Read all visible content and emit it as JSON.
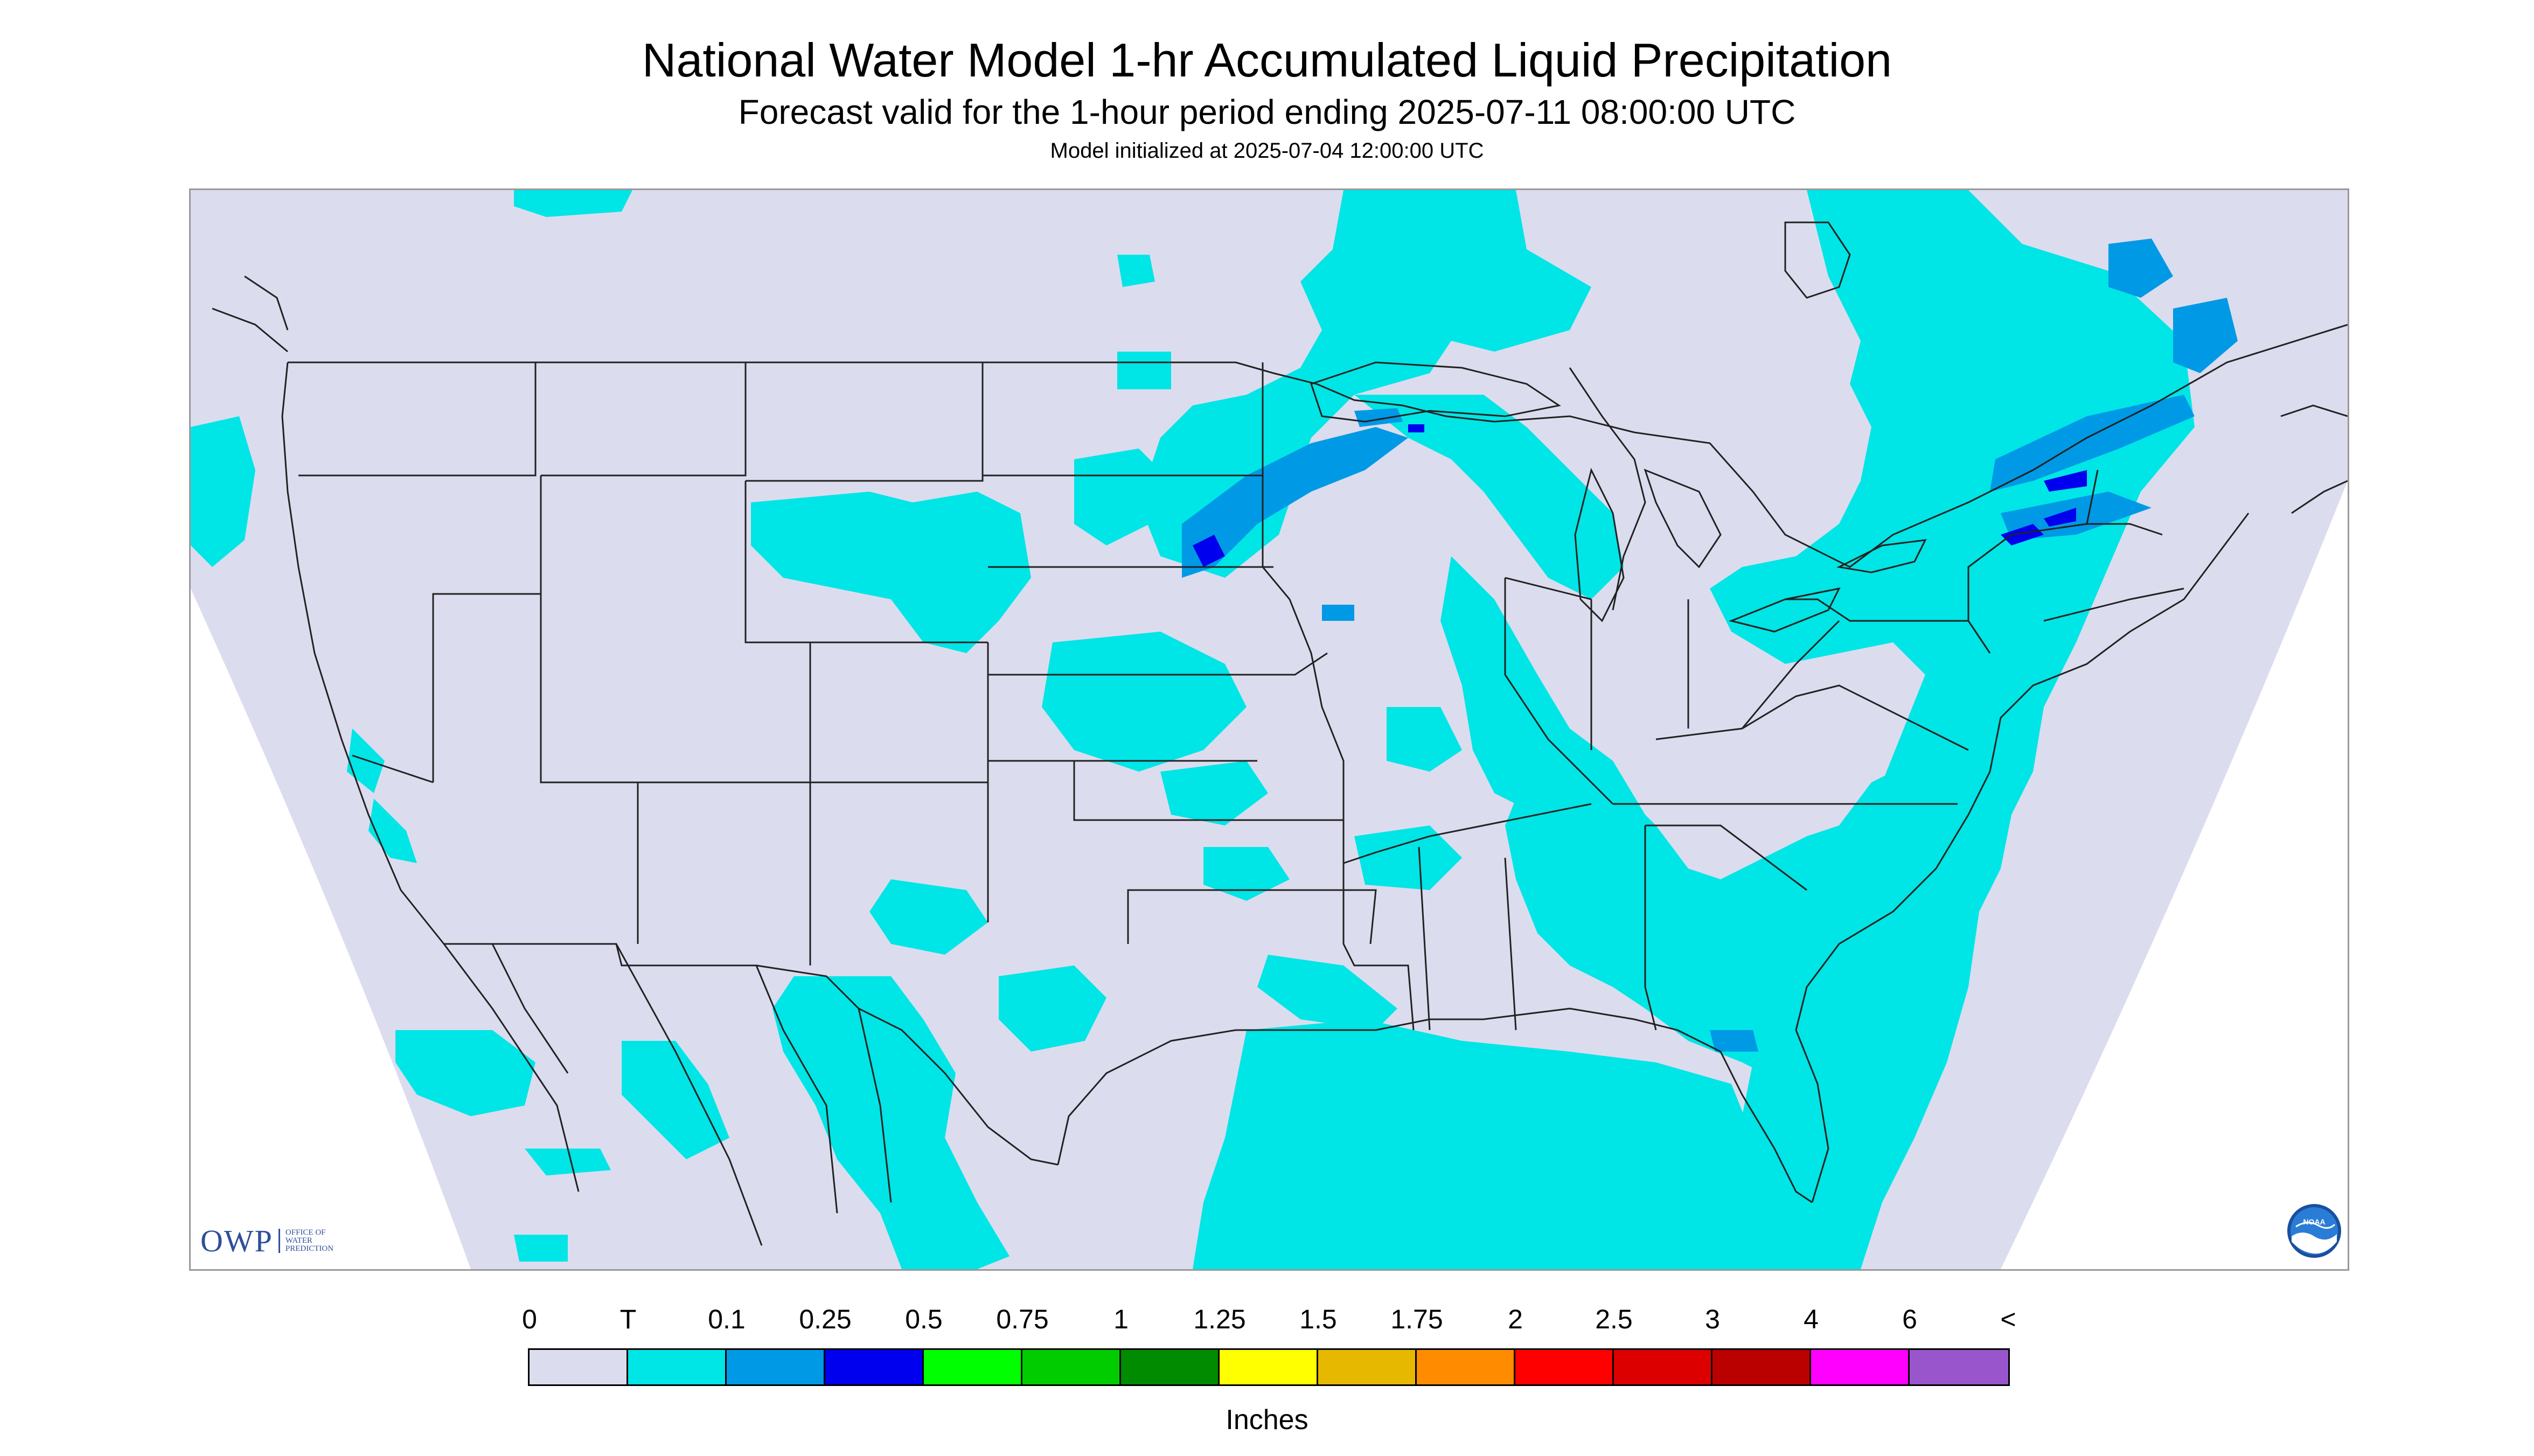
{
  "title": "National Water Model 1-hr Accumulated Liquid Precipitation",
  "subtitle": "Forecast valid for the 1-hour period ending 2025-07-11 08:00:00 UTC",
  "init_line": "Model initialized at 2025-07-04 12:00:00 UTC",
  "owp_logo": {
    "mark": "OWP",
    "text": [
      "OFFICE OF",
      "WATER",
      "PREDICTION"
    ]
  },
  "noaa_logo": {
    "text": "NOAA"
  },
  "legend": {
    "units": "Inches",
    "tick_labels": [
      "0",
      "T",
      "0.1",
      "0.25",
      "0.5",
      "0.75",
      "1",
      "1.25",
      "1.5",
      "1.75",
      "2",
      "2.5",
      "3",
      "4",
      "6",
      "<"
    ],
    "colors": [
      "#dcdcef",
      "#00e5e5",
      "#0099e5",
      "#0000ee",
      "#00ff00",
      "#00cc00",
      "#008b00",
      "#ffff00",
      "#e6b800",
      "#ff8c00",
      "#ff0000",
      "#dd0000",
      "#bb0000",
      "#ff00ff",
      "#9955cc"
    ]
  },
  "colors": {
    "background_precip_none": "#dcdcef",
    "trace": "#00e5e5",
    "light": "#0099e5",
    "moderate": "#0000ee"
  }
}
